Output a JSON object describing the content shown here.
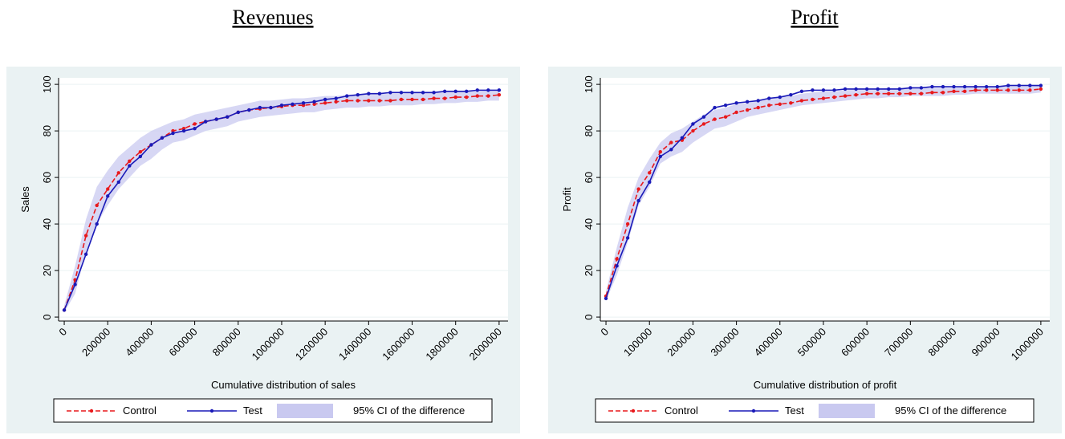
{
  "chart_data": [
    {
      "type": "line",
      "title": "Revenues",
      "x_label": "Cumulative distribution of sales",
      "y_label": "Sales",
      "x": [
        0,
        50000,
        100000,
        150000,
        200000,
        250000,
        300000,
        350000,
        400000,
        450000,
        500000,
        550000,
        600000,
        650000,
        700000,
        750000,
        800000,
        850000,
        900000,
        950000,
        1000000,
        1050000,
        1100000,
        1150000,
        1200000,
        1250000,
        1300000,
        1350000,
        1400000,
        1450000,
        1500000,
        1550000,
        1600000,
        1650000,
        1700000,
        1750000,
        1800000,
        1850000,
        1900000,
        1950000,
        2000000
      ],
      "series": [
        {
          "name": "Control",
          "color": "#e8191c",
          "values": [
            3,
            16,
            35,
            48,
            55,
            62,
            67,
            71,
            74,
            77,
            80,
            81,
            83,
            84,
            85,
            86,
            88,
            89,
            89.5,
            90,
            90.5,
            91,
            91,
            91.5,
            92,
            92.5,
            93,
            93,
            93,
            93,
            93,
            93.5,
            93.5,
            93.5,
            94,
            94,
            94.5,
            94.5,
            95,
            95,
            95.5
          ]
        },
        {
          "name": "Test",
          "color": "#1a1ab8",
          "values": [
            3,
            14,
            27,
            40,
            52,
            58,
            65,
            69,
            74,
            77,
            79,
            80,
            81,
            84,
            85,
            86,
            88,
            89,
            90,
            90,
            91,
            91.5,
            92,
            92.5,
            93.5,
            94,
            95,
            95.5,
            96,
            96,
            96.5,
            96.5,
            96.5,
            96.5,
            96.5,
            97,
            97,
            97,
            97.5,
            97.5,
            97.5
          ]
        }
      ],
      "band": {
        "name": "95% CI of the difference",
        "color": "#c9c9f0",
        "lower": [
          2,
          10,
          28,
          40,
          48,
          55,
          60,
          65,
          68,
          72,
          75,
          76,
          78,
          80,
          81,
          82,
          84,
          85,
          86,
          86.5,
          87,
          87.5,
          88,
          88,
          89,
          89.5,
          90,
          90,
          90.5,
          90.5,
          91,
          91,
          91,
          91.5,
          91.5,
          92,
          92,
          92.5,
          92.5,
          93,
          93
        ],
        "upper": [
          5,
          22,
          42,
          56,
          63,
          69,
          73,
          77,
          80,
          82,
          84,
          85,
          87,
          88,
          89,
          90,
          91,
          92,
          93,
          93,
          93.5,
          94,
          94,
          94.5,
          95,
          95,
          95.5,
          96,
          96,
          96,
          96,
          96,
          96.5,
          96.5,
          96.5,
          97,
          97,
          97,
          97,
          97.5,
          97.5
        ]
      },
      "xlim": [
        -26000,
        2041000
      ],
      "ylim": [
        -1.7,
        102.8
      ],
      "xticks": [
        0,
        200000,
        400000,
        600000,
        800000,
        1000000,
        1200000,
        1400000,
        1600000,
        1800000,
        2000000
      ],
      "yticks": [
        0,
        20,
        40,
        60,
        80,
        100
      ],
      "grid": true
    },
    {
      "type": "line",
      "title": "Profit",
      "x_label": "Cumulative distribution of profit",
      "y_label": "Profit",
      "x": [
        0,
        25000,
        50000,
        75000,
        100000,
        125000,
        150000,
        175000,
        200000,
        225000,
        250000,
        275000,
        300000,
        325000,
        350000,
        375000,
        400000,
        425000,
        450000,
        475000,
        500000,
        525000,
        550000,
        575000,
        600000,
        625000,
        650000,
        675000,
        700000,
        725000,
        750000,
        775000,
        800000,
        825000,
        850000,
        875000,
        900000,
        925000,
        950000,
        975000,
        1000000
      ],
      "series": [
        {
          "name": "Control",
          "color": "#e8191c",
          "values": [
            9,
            25,
            40,
            55,
            62,
            71,
            75,
            76,
            80,
            83,
            85,
            86,
            88,
            89,
            90,
            91,
            91.5,
            92,
            93,
            93.5,
            94,
            94.5,
            95,
            95.5,
            96,
            96,
            96,
            96,
            96,
            96,
            96.5,
            96.5,
            97,
            97,
            97.5,
            97.5,
            97.5,
            97.5,
            97.5,
            97.5,
            98
          ]
        },
        {
          "name": "Test",
          "color": "#1a1ab8",
          "values": [
            8,
            22,
            34,
            50,
            58,
            69,
            72,
            77,
            83,
            86,
            90,
            91,
            92,
            92.5,
            93,
            94,
            94.5,
            95.5,
            97,
            97.5,
            97.5,
            97.5,
            98,
            98,
            98,
            98,
            98,
            98,
            98.5,
            98.5,
            99,
            99,
            99,
            99,
            99,
            99,
            99,
            99.5,
            99.5,
            99.5,
            99.5
          ]
        }
      ],
      "band": {
        "name": "95% CI of the difference",
        "color": "#c9c9f0",
        "lower": [
          7,
          18,
          32,
          48,
          56,
          66,
          69,
          71,
          75,
          78,
          81,
          82,
          84,
          86,
          87,
          88,
          89,
          90,
          91,
          91.5,
          92,
          92.5,
          93,
          93.5,
          94,
          94,
          94.5,
          94.5,
          95,
          95,
          95,
          95,
          95.5,
          95.5,
          96,
          96,
          96,
          96,
          96,
          96,
          96.5
        ],
        "upper": [
          11,
          30,
          47,
          60,
          68,
          75,
          79,
          81,
          84,
          87,
          89,
          90,
          91.5,
          92,
          93,
          94,
          94.5,
          95,
          96,
          96.5,
          97,
          97,
          97.5,
          98,
          98,
          98,
          98.5,
          98.5,
          98.5,
          98.5,
          98.5,
          98.5,
          98.5,
          99,
          99,
          99,
          99,
          99,
          99,
          99,
          99.5
        ]
      },
      "xlim": [
        -13000,
        1020500
      ],
      "ylim": [
        -1.7,
        102.8
      ],
      "xticks": [
        0,
        100000,
        200000,
        300000,
        400000,
        500000,
        600000,
        700000,
        800000,
        900000,
        1000000
      ],
      "yticks": [
        0,
        20,
        40,
        60,
        80,
        100
      ],
      "grid": true
    }
  ]
}
